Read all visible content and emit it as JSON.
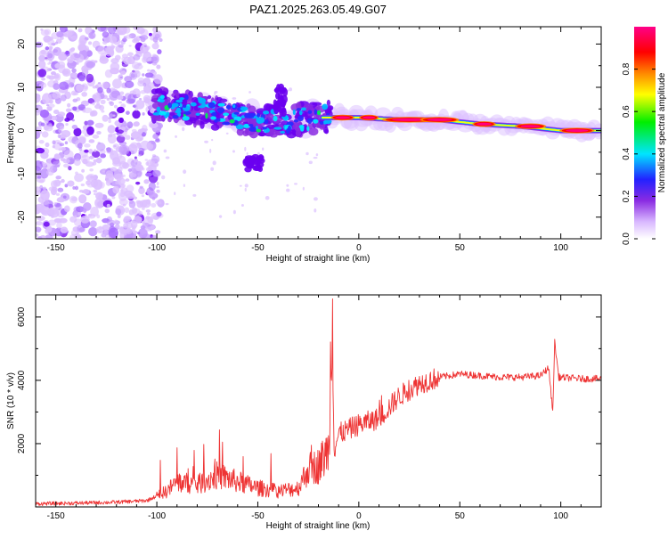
{
  "chart_data": [
    {
      "type": "heatmap",
      "title": "PAZ1.2025.263.05.49.G07",
      "xlabel": "Height of straight line (km)",
      "ylabel": "Frequency (Hz)",
      "xlim": [
        -160,
        120
      ],
      "ylim": [
        -25,
        24
      ],
      "xticks": [
        -150,
        -100,
        -50,
        0,
        50,
        100
      ],
      "yticks": [
        -20,
        -10,
        0,
        10,
        20
      ],
      "colorbar": {
        "label": "Normalized spectral amplitude",
        "range": [
          0,
          1
        ],
        "ticks": [
          0.0,
          0.2,
          0.4,
          0.6,
          0.8
        ]
      },
      "ridge_centerline": [
        {
          "x": -100,
          "y": 6
        },
        {
          "x": -80,
          "y": 5
        },
        {
          "x": -60,
          "y": 3
        },
        {
          "x": -40,
          "y": 2
        },
        {
          "x": -20,
          "y": 3
        },
        {
          "x": 0,
          "y": 3
        },
        {
          "x": 20,
          "y": 2.5
        },
        {
          "x": 40,
          "y": 2.5
        },
        {
          "x": 60,
          "y": 1.5
        },
        {
          "x": 80,
          "y": 1
        },
        {
          "x": 100,
          "y": 0
        },
        {
          "x": 120,
          "y": 0
        }
      ]
    },
    {
      "type": "line",
      "xlabel": "Height of straight line (km)",
      "ylabel": "SNR (10 * v/v)",
      "xlim": [
        -160,
        120
      ],
      "ylim": [
        0,
        6700
      ],
      "xticks": [
        -150,
        -100,
        -50,
        0,
        50,
        100
      ],
      "yticks": [
        2000,
        4000,
        6000
      ],
      "series": [
        {
          "name": "SNR",
          "color": "#ee3333",
          "points": [
            {
              "x": -160,
              "y": 100
            },
            {
              "x": -140,
              "y": 120
            },
            {
              "x": -120,
              "y": 150
            },
            {
              "x": -105,
              "y": 200
            },
            {
              "x": -95,
              "y": 500
            },
            {
              "x": -90,
              "y": 800
            },
            {
              "x": -80,
              "y": 700
            },
            {
              "x": -70,
              "y": 1000
            },
            {
              "x": -60,
              "y": 800
            },
            {
              "x": -50,
              "y": 600
            },
            {
              "x": -40,
              "y": 500
            },
            {
              "x": -30,
              "y": 600
            },
            {
              "x": -25,
              "y": 1200
            },
            {
              "x": -20,
              "y": 1300
            },
            {
              "x": -15,
              "y": 1800
            },
            {
              "x": -13,
              "y": 6600
            },
            {
              "x": -12,
              "y": 1800
            },
            {
              "x": -10,
              "y": 2300
            },
            {
              "x": 0,
              "y": 2600
            },
            {
              "x": 10,
              "y": 2800
            },
            {
              "x": 20,
              "y": 3500
            },
            {
              "x": 30,
              "y": 3900
            },
            {
              "x": 40,
              "y": 4100
            },
            {
              "x": 50,
              "y": 4200
            },
            {
              "x": 60,
              "y": 4150
            },
            {
              "x": 70,
              "y": 4100
            },
            {
              "x": 80,
              "y": 4100
            },
            {
              "x": 90,
              "y": 4150
            },
            {
              "x": 94,
              "y": 4400
            },
            {
              "x": 96,
              "y": 3000
            },
            {
              "x": 97,
              "y": 5200
            },
            {
              "x": 99,
              "y": 4100
            },
            {
              "x": 110,
              "y": 4050
            },
            {
              "x": 120,
              "y": 4050
            }
          ]
        }
      ]
    }
  ]
}
